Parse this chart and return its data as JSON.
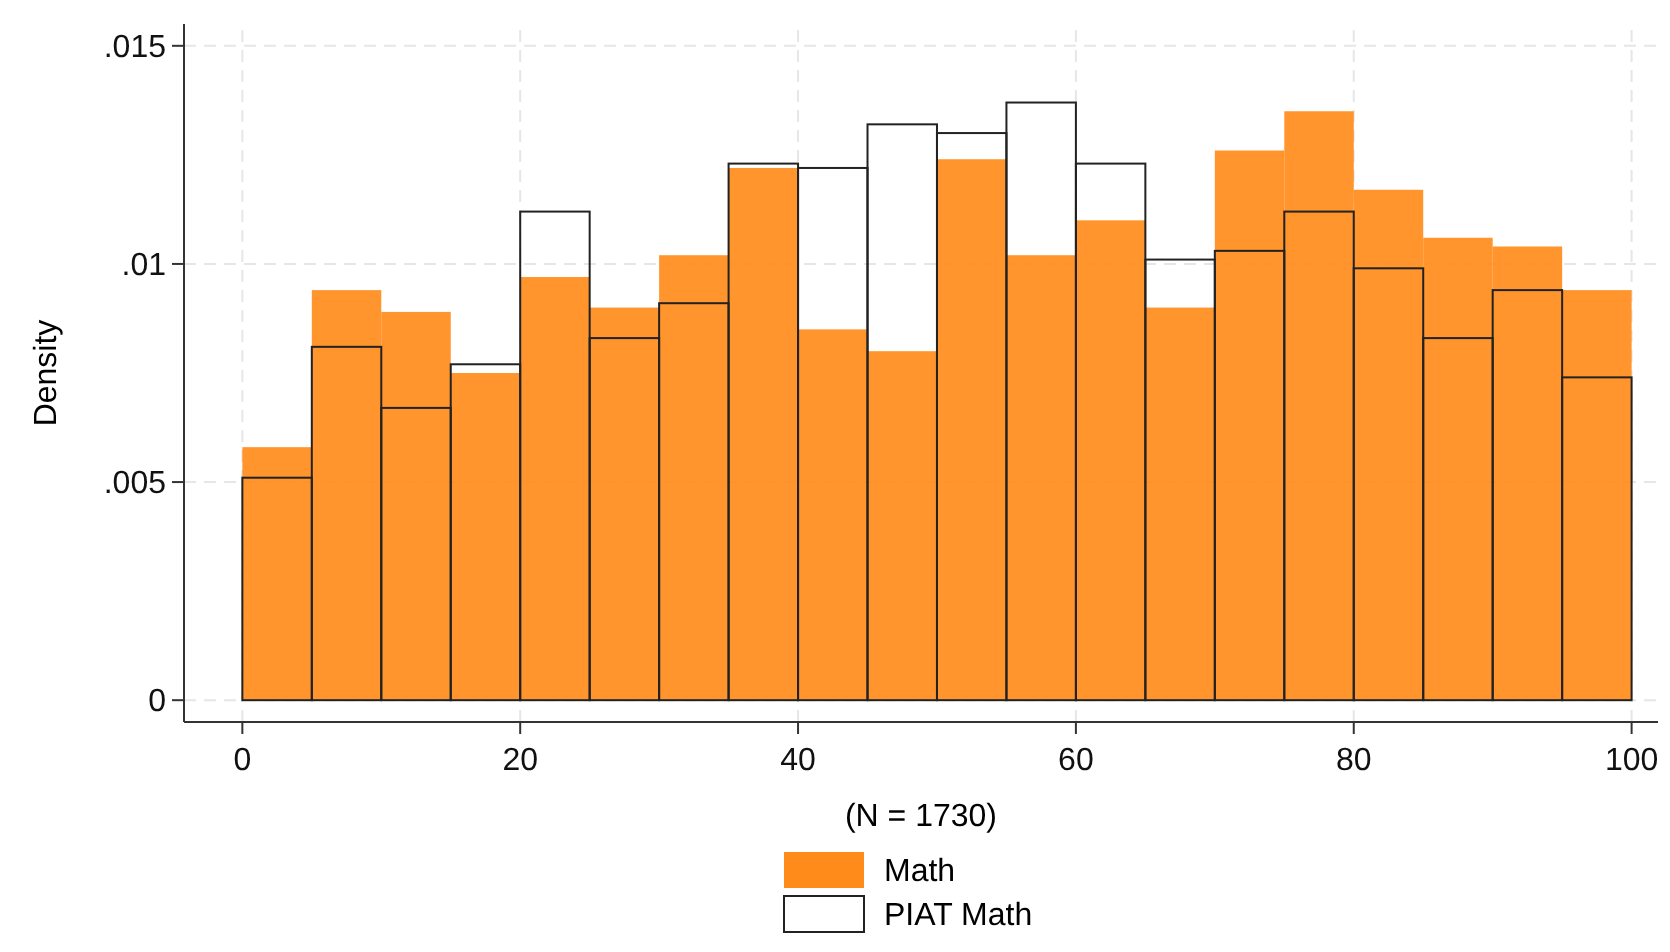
{
  "chart_data": {
    "type": "histogram",
    "xlabel": "(N = 1730)",
    "ylabel": "Density",
    "bins": [
      0,
      5,
      10,
      15,
      20,
      25,
      30,
      35,
      40,
      45,
      50,
      55,
      60,
      65,
      70,
      75,
      80,
      85,
      90,
      95,
      100
    ],
    "series": [
      {
        "name": "Math",
        "color": "#ff8c1a",
        "values": [
          0.0058,
          0.0094,
          0.0089,
          0.0075,
          0.0097,
          0.009,
          0.0102,
          0.0122,
          0.0085,
          0.008,
          0.0124,
          0.0102,
          0.011,
          0.009,
          0.0126,
          0.0135,
          0.0117,
          0.0106,
          0.0104,
          0.0094
        ]
      },
      {
        "name": "PIAT Math",
        "color": "#222222",
        "values": [
          0.0051,
          0.0081,
          0.0067,
          0.0077,
          0.0112,
          0.0083,
          0.0091,
          0.0123,
          0.0122,
          0.0132,
          0.013,
          0.0137,
          0.0123,
          0.0101,
          0.0103,
          0.0112,
          0.0099,
          0.0083,
          0.0094,
          0.0074
        ]
      }
    ],
    "xlim": [
      -4.2,
      101.9
    ],
    "xticks": [
      0,
      20,
      40,
      60,
      80,
      100
    ],
    "ylim": [
      -0.0005,
      0.0155
    ],
    "yticks": [
      {
        "value": 0,
        "label": "0"
      },
      {
        "value": 0.005,
        "label": ".005"
      },
      {
        "value": 0.01,
        "label": ".01"
      },
      {
        "value": 0.015,
        "label": ".015"
      }
    ],
    "grid": true,
    "legend": "bottom"
  }
}
